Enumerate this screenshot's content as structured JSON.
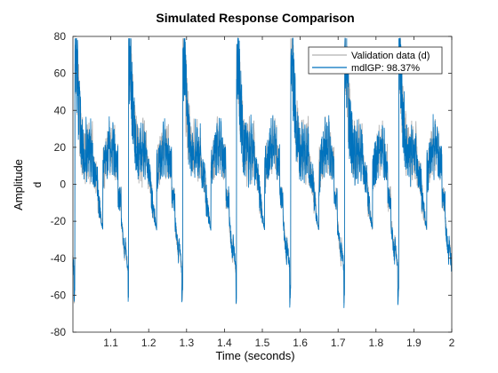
{
  "chart_data": {
    "type": "line",
    "title": "Simulated Response Comparison",
    "xlabel": "Time (seconds)",
    "ylabel": "Amplitude",
    "channel_label": "d",
    "xlim": [
      1.0,
      2.0
    ],
    "ylim": [
      -80,
      80
    ],
    "x_ticks": [
      "1.1",
      "1.2",
      "1.3",
      "1.4",
      "1.5",
      "1.6",
      "1.7",
      "1.8",
      "1.9",
      "2"
    ],
    "y_ticks": [
      "80",
      "60",
      "40",
      "20",
      "0",
      "-20",
      "-40",
      "-60",
      "-80"
    ],
    "legend_position": "top-right",
    "series": [
      {
        "name": "Validation data (d)",
        "color": "#b0b0b0",
        "pattern": {
          "cycle_starts": [
            1.005,
            1.147,
            1.29,
            1.432,
            1.575,
            1.717,
            1.86
          ],
          "cycle_period": 0.1425,
          "peak": 70,
          "negative_spike": -65,
          "plateau_range": [
            5,
            30
          ]
        }
      },
      {
        "name": "mdlGP: 98.37%",
        "color": "#0072bd",
        "pattern": {
          "cycle_starts": [
            1.005,
            1.147,
            1.29,
            1.432,
            1.575,
            1.717,
            1.86
          ],
          "cycle_period": 0.1425,
          "peak": 70,
          "negative_spike": -65,
          "plateau_range": [
            5,
            30
          ]
        }
      }
    ]
  }
}
